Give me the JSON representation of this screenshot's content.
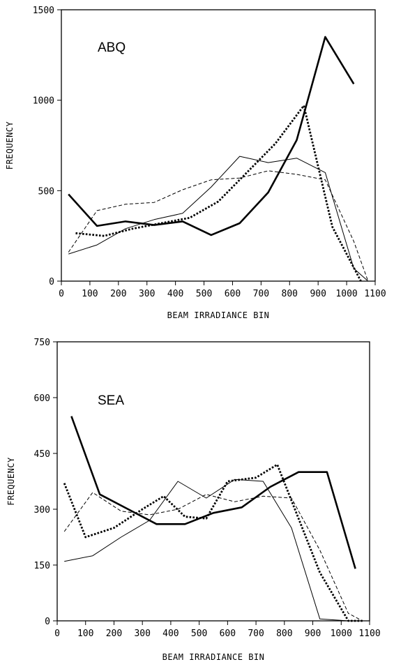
{
  "chart_data": [
    {
      "type": "line",
      "title": "ABQ",
      "xlabel": "BEAM IRRADIANCE BIN",
      "ylabel": "FREQUENCY",
      "xlim": [
        0,
        1100
      ],
      "ylim": [
        0,
        1500
      ],
      "xticks": [
        0,
        100,
        200,
        300,
        400,
        500,
        600,
        700,
        800,
        900,
        1000,
        1100
      ],
      "yticks": [
        0,
        500,
        1000,
        1500
      ],
      "grid": false,
      "series": [
        {
          "style": "thick-solid",
          "x": [
            25,
            125,
            225,
            325,
            425,
            525,
            625,
            725,
            825,
            925,
            1025
          ],
          "y": [
            480,
            305,
            330,
            310,
            330,
            255,
            320,
            490,
            780,
            1350,
            1090
          ]
        },
        {
          "style": "thin-solid",
          "x": [
            25,
            125,
            225,
            325,
            425,
            525,
            625,
            725,
            825,
            925,
            1025,
            1075
          ],
          "y": [
            150,
            200,
            290,
            340,
            375,
            520,
            690,
            655,
            680,
            600,
            70,
            0
          ]
        },
        {
          "style": "thick-dotted",
          "x": [
            50,
            150,
            250,
            350,
            450,
            550,
            650,
            750,
            850,
            950,
            1050
          ],
          "y": [
            265,
            250,
            290,
            320,
            350,
            440,
            600,
            760,
            970,
            300,
            0
          ]
        },
        {
          "style": "thin-dashed",
          "x": [
            25,
            125,
            225,
            325,
            425,
            525,
            625,
            725,
            825,
            925,
            1025,
            1075
          ],
          "y": [
            160,
            390,
            425,
            435,
            505,
            560,
            570,
            610,
            590,
            560,
            220,
            0
          ]
        }
      ]
    },
    {
      "type": "line",
      "title": "SEA",
      "xlabel": "BEAM IRRADIANCE BIN",
      "ylabel": "FREQUENCY",
      "xlim": [
        0,
        1100
      ],
      "ylim": [
        0,
        750
      ],
      "xticks": [
        0,
        100,
        200,
        300,
        400,
        500,
        600,
        700,
        800,
        900,
        1000,
        1100
      ],
      "yticks": [
        0,
        150,
        300,
        450,
        600,
        750
      ],
      "grid": false,
      "series": [
        {
          "style": "thick-solid",
          "x": [
            50,
            150,
            250,
            350,
            450,
            550,
            650,
            750,
            850,
            950,
            1050
          ],
          "y": [
            550,
            340,
            300,
            260,
            260,
            290,
            305,
            360,
            400,
            400,
            140
          ]
        },
        {
          "style": "thin-solid",
          "x": [
            25,
            125,
            225,
            325,
            425,
            525,
            625,
            725,
            825,
            925,
            1025,
            1075
          ],
          "y": [
            160,
            175,
            225,
            270,
            375,
            330,
            380,
            375,
            250,
            5,
            0,
            0
          ]
        },
        {
          "style": "thick-dotted",
          "x": [
            25,
            100,
            200,
            300,
            375,
            450,
            525,
            600,
            700,
            775,
            925,
            1025,
            1075
          ],
          "y": [
            370,
            225,
            250,
            300,
            335,
            280,
            275,
            375,
            385,
            420,
            130,
            0,
            0
          ]
        },
        {
          "style": "thin-dashed",
          "x": [
            25,
            125,
            225,
            325,
            425,
            525,
            625,
            725,
            825,
            925,
            1025,
            1075
          ],
          "y": [
            240,
            345,
            295,
            285,
            300,
            340,
            320,
            335,
            330,
            190,
            20,
            0
          ]
        }
      ]
    }
  ]
}
